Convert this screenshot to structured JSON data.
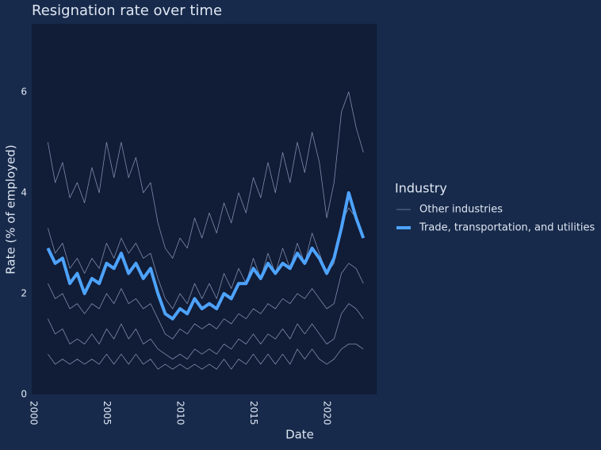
{
  "chart_data": {
    "type": "line",
    "title": "Resignation rate over time",
    "x_label": "Date",
    "y_label": "Rate (% of employed)",
    "legend_title": "Industry",
    "legend": "right",
    "grid": false,
    "x": [
      2001,
      2001.5,
      2002,
      2002.5,
      2003,
      2003.5,
      2004,
      2004.5,
      2005,
      2005.5,
      2006,
      2006.5,
      2007,
      2007.5,
      2008,
      2008.5,
      2009,
      2009.5,
      2010,
      2010.5,
      2011,
      2011.5,
      2012,
      2012.5,
      2013,
      2013.5,
      2014,
      2014.5,
      2015,
      2015.5,
      2016,
      2016.5,
      2017,
      2017.5,
      2018,
      2018.5,
      2019,
      2019.5,
      2020,
      2020.5,
      2021,
      2021.5,
      2022,
      2022.5
    ],
    "xlim": [
      1999.9,
      2023.4
    ],
    "xticks": [
      2000,
      2005,
      2010,
      2015,
      2020
    ],
    "ylim": [
      0,
      7.35
    ],
    "yticks": [
      0,
      2,
      4,
      6
    ],
    "series": [
      {
        "name": "Other industries",
        "color": "#7d8db0",
        "width": 0.8,
        "values": [
          [
            5.0,
            4.2,
            4.6,
            3.9,
            4.2,
            3.8,
            4.5,
            4.0,
            5.0,
            4.3,
            5.0,
            4.3,
            4.7,
            4.0,
            4.2,
            3.4,
            2.9,
            2.7,
            3.1,
            2.9,
            3.5,
            3.1,
            3.6,
            3.2,
            3.8,
            3.4,
            4.0,
            3.6,
            4.3,
            3.9,
            4.6,
            4.0,
            4.8,
            4.2,
            5.0,
            4.4,
            5.2,
            4.6,
            3.5,
            4.2,
            5.6,
            6.0,
            5.3,
            4.8
          ],
          [
            2.2,
            1.9,
            2.0,
            1.7,
            1.8,
            1.6,
            1.8,
            1.7,
            2.0,
            1.8,
            2.1,
            1.8,
            1.9,
            1.7,
            1.8,
            1.5,
            1.2,
            1.1,
            1.3,
            1.2,
            1.4,
            1.3,
            1.4,
            1.3,
            1.5,
            1.4,
            1.6,
            1.5,
            1.7,
            1.6,
            1.8,
            1.7,
            1.9,
            1.8,
            2.0,
            1.9,
            2.1,
            1.9,
            1.7,
            1.8,
            2.4,
            2.6,
            2.5,
            2.2
          ],
          [
            1.5,
            1.2,
            1.3,
            1.0,
            1.1,
            1.0,
            1.2,
            1.0,
            1.3,
            1.1,
            1.4,
            1.1,
            1.3,
            1.0,
            1.1,
            0.9,
            0.8,
            0.7,
            0.8,
            0.7,
            0.9,
            0.8,
            0.9,
            0.8,
            1.0,
            0.9,
            1.1,
            1.0,
            1.2,
            1.0,
            1.2,
            1.1,
            1.3,
            1.1,
            1.4,
            1.2,
            1.4,
            1.2,
            1.0,
            1.1,
            1.6,
            1.8,
            1.7,
            1.5
          ],
          [
            0.8,
            0.6,
            0.7,
            0.6,
            0.7,
            0.6,
            0.7,
            0.6,
            0.8,
            0.6,
            0.8,
            0.6,
            0.8,
            0.6,
            0.7,
            0.5,
            0.6,
            0.5,
            0.6,
            0.5,
            0.6,
            0.5,
            0.6,
            0.5,
            0.7,
            0.5,
            0.7,
            0.6,
            0.8,
            0.6,
            0.8,
            0.6,
            0.8,
            0.6,
            0.9,
            0.7,
            0.9,
            0.7,
            0.6,
            0.7,
            0.9,
            1.0,
            1.0,
            0.9
          ],
          [
            3.3,
            2.8,
            3.0,
            2.5,
            2.7,
            2.4,
            2.7,
            2.5,
            3.0,
            2.7,
            3.1,
            2.8,
            3.0,
            2.7,
            2.8,
            2.3,
            1.9,
            1.7,
            2.0,
            1.8,
            2.2,
            1.9,
            2.2,
            1.9,
            2.4,
            2.1,
            2.5,
            2.2,
            2.7,
            2.3,
            2.8,
            2.4,
            2.9,
            2.5,
            3.0,
            2.6,
            3.2,
            2.8,
            2.4,
            2.6,
            3.4,
            3.7,
            3.5,
            3.1
          ]
        ]
      },
      {
        "name": "Trade, transportation, and utilities",
        "color": "#4da3ff",
        "width": 4,
        "values": [
          2.9,
          2.6,
          2.7,
          2.2,
          2.4,
          2.0,
          2.3,
          2.2,
          2.6,
          2.5,
          2.8,
          2.4,
          2.6,
          2.3,
          2.5,
          2.0,
          1.6,
          1.5,
          1.7,
          1.6,
          1.9,
          1.7,
          1.8,
          1.7,
          2.0,
          1.9,
          2.2,
          2.2,
          2.5,
          2.3,
          2.6,
          2.4,
          2.6,
          2.5,
          2.8,
          2.6,
          2.9,
          2.7,
          2.4,
          2.7,
          3.3,
          4.0,
          3.5,
          3.1
        ]
      }
    ]
  }
}
